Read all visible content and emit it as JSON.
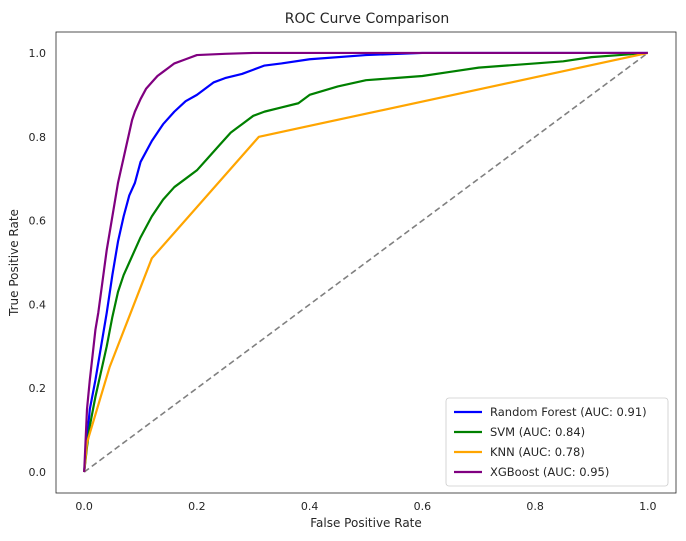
{
  "chart_data": {
    "type": "line",
    "title": "ROC Curve Comparison",
    "xlabel": "False Positive Rate",
    "ylabel": "True Positive Rate",
    "xlim": [
      -0.05,
      1.05
    ],
    "ylim": [
      -0.05,
      1.05
    ],
    "x_ticks": [
      "0.0",
      "0.2",
      "0.4",
      "0.6",
      "0.8",
      "1.0"
    ],
    "y_ticks": [
      "0.0",
      "0.2",
      "0.4",
      "0.6",
      "0.8",
      "1.0"
    ],
    "grid": false,
    "legend_position": "bottom-right",
    "baseline": {
      "x": [
        0,
        1
      ],
      "y": [
        0,
        1
      ],
      "color": "#808080",
      "style": "dashed"
    },
    "series": [
      {
        "name": "Random Forest (AUC: 0.91)",
        "color": "#0000ff",
        "x": [
          0,
          0.005,
          0.01,
          0.02,
          0.03,
          0.04,
          0.05,
          0.06,
          0.07,
          0.08,
          0.09,
          0.1,
          0.12,
          0.14,
          0.16,
          0.18,
          0.2,
          0.23,
          0.25,
          0.28,
          0.3,
          0.32,
          0.35,
          0.4,
          0.5,
          0.6,
          0.8,
          1.0
        ],
        "y": [
          0,
          0.08,
          0.15,
          0.22,
          0.3,
          0.38,
          0.47,
          0.55,
          0.61,
          0.66,
          0.69,
          0.74,
          0.79,
          0.83,
          0.86,
          0.885,
          0.9,
          0.93,
          0.94,
          0.95,
          0.96,
          0.97,
          0.975,
          0.985,
          0.995,
          1.0,
          1.0,
          1.0
        ]
      },
      {
        "name": "SVM (AUC: 0.84)",
        "color": "#008000",
        "x": [
          0,
          0.005,
          0.01,
          0.02,
          0.03,
          0.04,
          0.05,
          0.06,
          0.07,
          0.08,
          0.1,
          0.12,
          0.14,
          0.16,
          0.18,
          0.2,
          0.22,
          0.24,
          0.26,
          0.28,
          0.3,
          0.32,
          0.35,
          0.38,
          0.4,
          0.45,
          0.5,
          0.55,
          0.6,
          0.65,
          0.7,
          0.75,
          0.8,
          0.85,
          0.9,
          0.95,
          1.0
        ],
        "y": [
          0,
          0.06,
          0.11,
          0.18,
          0.24,
          0.3,
          0.37,
          0.43,
          0.47,
          0.5,
          0.56,
          0.61,
          0.65,
          0.68,
          0.7,
          0.72,
          0.75,
          0.78,
          0.81,
          0.83,
          0.85,
          0.86,
          0.87,
          0.88,
          0.9,
          0.92,
          0.935,
          0.94,
          0.945,
          0.955,
          0.965,
          0.97,
          0.975,
          0.98,
          0.99,
          0.995,
          1.0
        ]
      },
      {
        "name": "KNN (AUC: 0.78)",
        "color": "#ffa500",
        "x": [
          0,
          0.005,
          0.045,
          0.12,
          0.31,
          1.0
        ],
        "y": [
          0,
          0.07,
          0.25,
          0.51,
          0.8,
          1.0
        ]
      },
      {
        "name": "XGBoost (AUC: 0.95)",
        "color": "#800080",
        "x": [
          0,
          0.005,
          0.01,
          0.015,
          0.02,
          0.025,
          0.03,
          0.035,
          0.04,
          0.045,
          0.05,
          0.055,
          0.06,
          0.065,
          0.07,
          0.075,
          0.08,
          0.085,
          0.09,
          0.1,
          0.11,
          0.12,
          0.13,
          0.14,
          0.15,
          0.16,
          0.18,
          0.2,
          0.25,
          0.3,
          0.4,
          0.6,
          0.8,
          1.0
        ],
        "y": [
          0,
          0.15,
          0.22,
          0.28,
          0.34,
          0.38,
          0.43,
          0.48,
          0.53,
          0.57,
          0.61,
          0.65,
          0.69,
          0.72,
          0.75,
          0.78,
          0.81,
          0.84,
          0.86,
          0.89,
          0.915,
          0.93,
          0.945,
          0.955,
          0.965,
          0.975,
          0.985,
          0.995,
          0.998,
          1.0,
          1.0,
          1.0,
          1.0,
          1.0
        ]
      }
    ]
  }
}
